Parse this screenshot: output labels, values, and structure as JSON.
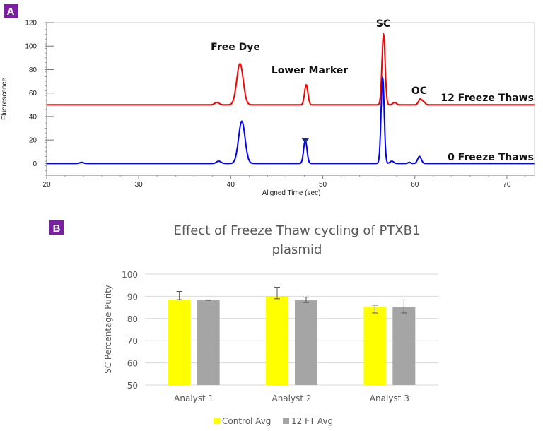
{
  "panel_labels": [
    "A",
    "B"
  ],
  "chart_data": [
    {
      "type": "line",
      "title": "",
      "xlabel": "Aligned Time (sec)",
      "ylabel": "Fluorescence",
      "xlim": [
        20,
        73
      ],
      "ylim": [
        -10,
        120
      ],
      "xticks": [
        20,
        30,
        40,
        50,
        60,
        70
      ],
      "yticks": [
        0,
        20,
        40,
        60,
        80,
        100,
        120
      ],
      "grid": false,
      "annotations": [
        "Free Dye",
        "Lower Marker",
        "SC",
        "OC"
      ],
      "series": [
        {
          "name": "12 Freeze Thaws",
          "color": "#ff0000",
          "baseline": 50,
          "peaks": [
            {
              "x": 38.5,
              "height": 2,
              "width": 0.25
            },
            {
              "x": 41.0,
              "height": 35,
              "width": 0.35
            },
            {
              "x": 48.2,
              "height": 17,
              "width": 0.18
            },
            {
              "x": 56.6,
              "height": 60,
              "width": 0.17
            },
            {
              "x": 57.8,
              "height": 2,
              "width": 0.2
            },
            {
              "x": 60.6,
              "height": 5,
              "width": 0.2
            },
            {
              "x": 61.0,
              "height": 2,
              "width": 0.15
            }
          ]
        },
        {
          "name": "0 Freeze Thaws",
          "color": "#0000ff",
          "baseline": 0,
          "peaks": [
            {
              "x": 23.8,
              "height": 1,
              "width": 0.2
            },
            {
              "x": 38.7,
              "height": 2,
              "width": 0.25
            },
            {
              "x": 41.2,
              "height": 36,
              "width": 0.35
            },
            {
              "x": 48.1,
              "height": 20,
              "width": 0.18
            },
            {
              "x": 56.5,
              "height": 73,
              "width": 0.17
            },
            {
              "x": 57.5,
              "height": 2,
              "width": 0.2
            },
            {
              "x": 59.4,
              "height": 1,
              "width": 0.15
            },
            {
              "x": 60.5,
              "height": 6,
              "width": 0.2
            }
          ]
        }
      ]
    },
    {
      "type": "bar",
      "title": "Effect of Freeze Thaw cycling of PTXB1 plasmid",
      "title_lines": [
        "Effect of Freeze Thaw cycling of PTXB1",
        "plasmid"
      ],
      "xlabel": "",
      "ylabel": "SC Percentage Purity",
      "ylim": [
        50,
        100
      ],
      "yticks": [
        50,
        60,
        70,
        80,
        90,
        100
      ],
      "grid": true,
      "legend": "bottom",
      "categories": [
        "Analyst 1",
        "Analyst 2",
        "Analyst 3"
      ],
      "series": [
        {
          "name": "Control Avg",
          "color": "#ffff00",
          "values": [
            88.5,
            90.0,
            85.3
          ],
          "err_low": [
            88.5,
            88.9,
            82.5
          ],
          "err_high": [
            92.2,
            94.1,
            86.0
          ]
        },
        {
          "name": "12 FT Avg",
          "color": "#a5a5a5",
          "values": [
            88.3,
            88.2,
            85.3
          ],
          "err_low": [
            88.2,
            87.2,
            82.5
          ],
          "err_high": [
            88.4,
            89.6,
            88.4
          ]
        }
      ]
    }
  ]
}
